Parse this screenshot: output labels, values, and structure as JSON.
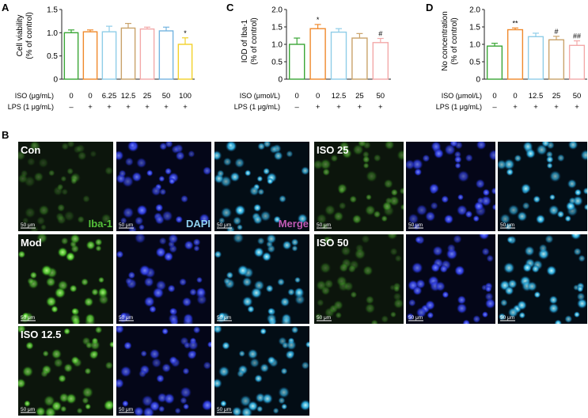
{
  "panel_labels": {
    "A": "A",
    "B": "B",
    "C": "C",
    "D": "D"
  },
  "chart_data": [
    {
      "panel": "A",
      "type": "bar",
      "ylabel_lines": [
        "Cell viability",
        "(% of control)"
      ],
      "ylim": [
        0,
        1.5
      ],
      "yticks": [
        "0",
        "0.5",
        "1.0",
        "1.5"
      ],
      "row_labels": [
        "ISO (μg/mL)",
        "LPS (1 μg/mL)"
      ],
      "categories": [
        "0",
        "0",
        "6.25",
        "12.5",
        "25",
        "50",
        "100"
      ],
      "lps": [
        "–",
        "+",
        "+",
        "+",
        "+",
        "+",
        "+"
      ],
      "values": [
        1.0,
        1.02,
        1.02,
        1.1,
        1.08,
        1.04,
        0.75
      ],
      "errors": [
        0.06,
        0.04,
        0.12,
        0.1,
        0.04,
        0.08,
        0.14
      ],
      "colors": [
        "#3aa635",
        "#f0892b",
        "#8fcde8",
        "#c9a26a",
        "#f3a9a9",
        "#74b4e0",
        "#f2d129"
      ],
      "annotations": [
        "",
        "",
        "",
        "",
        "",
        "",
        "*"
      ]
    },
    {
      "panel": "C",
      "type": "bar",
      "ylabel_lines": [
        "IOD of Iba-1",
        "(% of control)"
      ],
      "ylim": [
        0,
        2.0
      ],
      "yticks": [
        "0",
        "0.5",
        "1.0",
        "1.5",
        "2.0"
      ],
      "row_labels": [
        "ISO (μmol/L)",
        "LPS (1 μg/mL)"
      ],
      "categories": [
        "0",
        "0",
        "12.5",
        "25",
        "50"
      ],
      "lps": [
        "–",
        "+",
        "+",
        "+",
        "+"
      ],
      "values": [
        1.0,
        1.45,
        1.35,
        1.18,
        1.05
      ],
      "errors": [
        0.18,
        0.12,
        0.1,
        0.13,
        0.12
      ],
      "colors": [
        "#3aa635",
        "#f0892b",
        "#8fcde8",
        "#c9a26a",
        "#f3a9a9"
      ],
      "annotations": [
        "",
        "*",
        "",
        "",
        "#"
      ]
    },
    {
      "panel": "D",
      "type": "bar",
      "ylabel_lines": [
        "No concentration",
        "(% of control)"
      ],
      "ylim": [
        0,
        2.0
      ],
      "yticks": [
        "0",
        "0.5",
        "1.0",
        "1.5",
        "2.0"
      ],
      "row_labels": [
        "ISO (μmol/L)",
        "LPS (1 μg/mL)"
      ],
      "categories": [
        "0",
        "0",
        "12.5",
        "25",
        "50"
      ],
      "lps": [
        "–",
        "+",
        "+",
        "+",
        "+"
      ],
      "values": [
        0.95,
        1.42,
        1.22,
        1.13,
        0.97
      ],
      "errors": [
        0.08,
        0.05,
        0.1,
        0.1,
        0.13
      ],
      "colors": [
        "#3aa635",
        "#f0892b",
        "#8fcde8",
        "#c9a26a",
        "#f3a9a9"
      ],
      "annotations": [
        "",
        "**",
        "",
        "#",
        "##"
      ]
    }
  ],
  "micrographs": {
    "scale_label": "50 μm",
    "rows": [
      {
        "group": "Con",
        "channels": [
          "Iba-1",
          "DAPI",
          "Merge"
        ],
        "intensity": 0.35
      },
      {
        "group": "Mod",
        "intensity": 1.0
      },
      {
        "group": "ISO 12.5",
        "intensity": 0.9
      },
      {
        "group": "ISO 25",
        "intensity": 0.55
      },
      {
        "group": "ISO 50",
        "intensity": 0.4
      }
    ],
    "channel_colors": {
      "Iba-1": "#55c23a",
      "DAPI": "#8fd0ee",
      "Merge": "#c15ab5"
    }
  }
}
